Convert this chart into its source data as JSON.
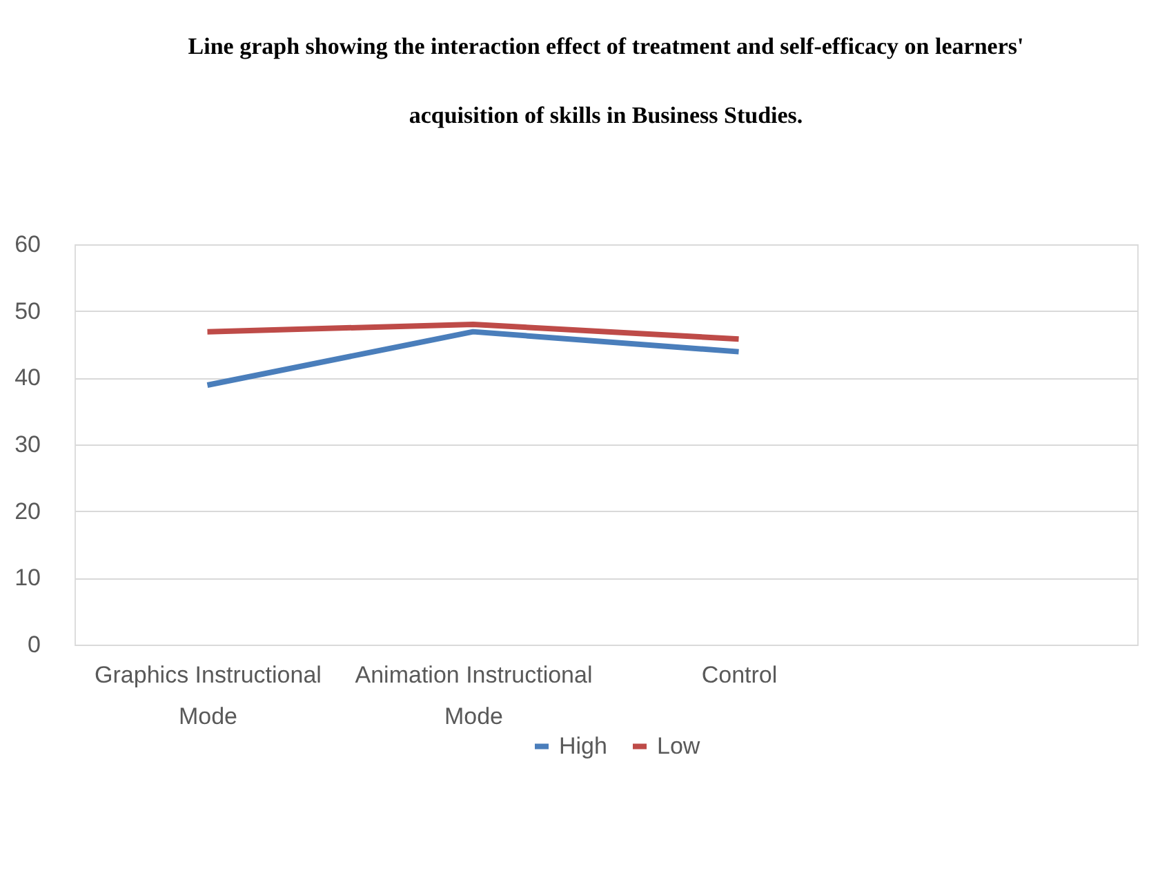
{
  "chart_data": {
    "type": "line",
    "title": [
      "Line graph showing the interaction effect of treatment and self-efficacy on learners'",
      "acquisition of skills in Business Studies."
    ],
    "categories": [
      "Graphics Instructional Mode",
      "Animation Instructional Mode",
      "Control",
      null
    ],
    "series": [
      {
        "name": "High",
        "color": "#4a7ebb",
        "values": [
          38.9,
          46.9,
          43.9,
          null
        ]
      },
      {
        "name": "Low",
        "color": "#be4b48",
        "values": [
          46.9,
          48.0,
          45.8,
          null
        ]
      }
    ],
    "ylim": [
      0,
      60
    ],
    "yticks": [
      0,
      10,
      20,
      30,
      40,
      50,
      60
    ],
    "grid": "y",
    "legend": "bottom",
    "marker": "none",
    "line_style": "solid"
  }
}
